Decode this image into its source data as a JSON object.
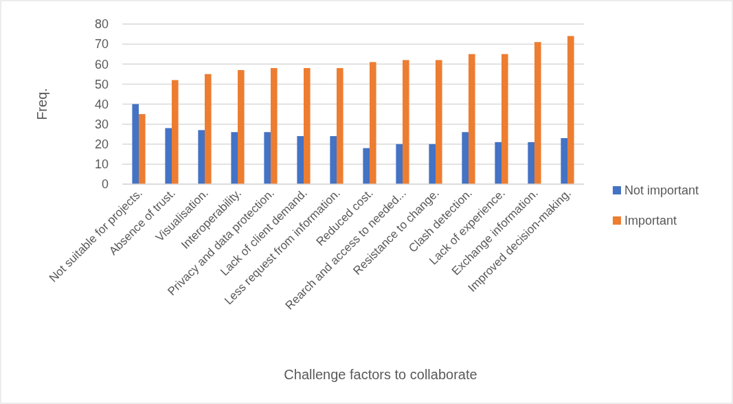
{
  "chart_data": {
    "type": "bar",
    "xlabel": "Challenge factors to collaborate",
    "ylabel": "Freq.",
    "categories": [
      "Not suitable for projects.",
      "Absence of trust.",
      "Visualisation.",
      "Interoperability.",
      "Privacy and data protection.",
      "Lack of client demand.",
      "Less request from information.",
      "Reduced cost.",
      "Rearch and access to needed...",
      "Resistance to change.",
      "Clash detection.",
      "Lack of experience.",
      "Exchange information.",
      "Improved decision-making."
    ],
    "series": [
      {
        "name": "Not important",
        "color": "#4472c4",
        "values": [
          40,
          28,
          27,
          26,
          26,
          24,
          24,
          18,
          20,
          20,
          26,
          21,
          21,
          23
        ]
      },
      {
        "name": "Important",
        "color": "#ed7d31",
        "values": [
          35,
          52,
          55,
          57,
          58,
          58,
          58,
          61,
          62,
          62,
          65,
          65,
          71,
          74
        ]
      }
    ],
    "ylim": [
      0,
      80
    ],
    "yticks": [
      0,
      10,
      20,
      30,
      40,
      50,
      60,
      70,
      80
    ],
    "grid": "y",
    "legend": "right"
  }
}
